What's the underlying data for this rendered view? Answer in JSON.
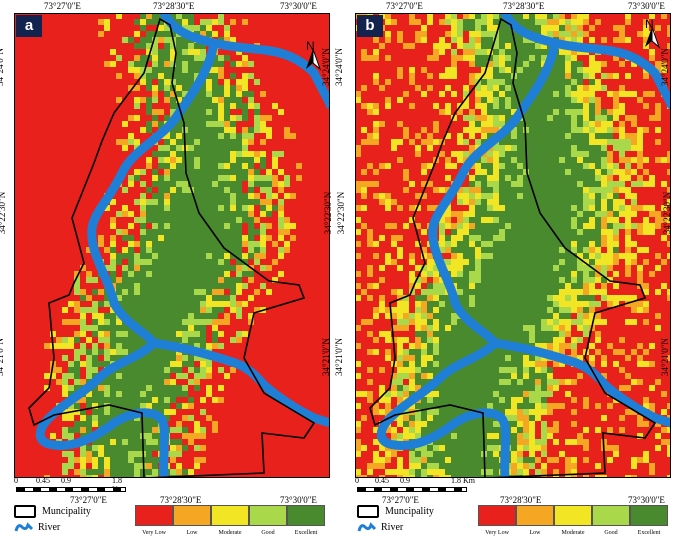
{
  "panels": [
    {
      "label": "a",
      "lon_labels": [
        "73°27'0\"E",
        "73°28'30\"E",
        "73°30'0\"E"
      ],
      "lat_labels": [
        "34°24'0\"N",
        "34°22'30\"N",
        "34°21'0\"N"
      ],
      "north_label": "N",
      "scale_labels": [
        "0",
        "0.45",
        "0.9",
        "1.8 Km"
      ],
      "palette": "red-dominant"
    },
    {
      "label": "b",
      "lon_labels": [
        "73°27'0\"E",
        "73°28'30\"E",
        "73°30'0\"E"
      ],
      "lat_labels": [
        "34°24'0\"N",
        "34°22'30\"N",
        "34°21'0\"N"
      ],
      "north_label": "N",
      "scale_labels": [
        "0",
        "0.45",
        "0.9",
        "1.8 Km"
      ],
      "palette": "mixed"
    }
  ],
  "legend": {
    "municipality": "Muncipality",
    "river": "River",
    "classes": [
      {
        "label": "Very Low",
        "color": "#e8211d"
      },
      {
        "label": "Low",
        "color": "#f5a623"
      },
      {
        "label": "Moderate",
        "color": "#f2e524"
      },
      {
        "label": "Good",
        "color": "#a9d84a"
      },
      {
        "label": "Excellent",
        "color": "#4a8a2e"
      }
    ]
  },
  "colors": {
    "river": "#1f7fd6",
    "municipality_outline": "#000000",
    "panel_tag_bg": "#13234f"
  }
}
